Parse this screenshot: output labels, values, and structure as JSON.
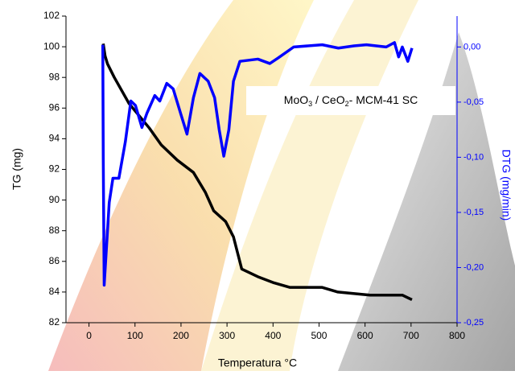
{
  "chart_data": {
    "type": "line",
    "xlabel": "Temperatura °C",
    "ylabel": "TG (mg)",
    "y2label": "DTG (mg/min)",
    "annotation": [
      "MoO",
      "3",
      " / CeO",
      "2",
      "- MCM-41 SC"
    ],
    "xlim": [
      -50,
      800
    ],
    "xticks": [
      0,
      100,
      200,
      300,
      400,
      500,
      600,
      700,
      800
    ],
    "ylim": [
      82,
      102
    ],
    "yticks": [
      82,
      84,
      86,
      88,
      90,
      92,
      94,
      96,
      98,
      100,
      102
    ],
    "y2lim": [
      -0.25,
      0.028
    ],
    "y2ticks": [
      {
        "value": 0,
        "label": "0,00"
      },
      {
        "value": -0.05,
        "label": "-0,05"
      },
      {
        "value": -0.1,
        "label": "-0,10"
      },
      {
        "value": -0.15,
        "label": "-0,15"
      },
      {
        "value": -0.2,
        "label": "-0,20"
      },
      {
        "value": -0.25,
        "label": "-0,25"
      }
    ],
    "y2color": "#0000ff",
    "series": [
      {
        "color": "#000000",
        "axis": "y",
        "x": [
          31,
          35,
          40,
          55,
          87,
          131,
          157,
          192,
          227,
          253,
          271,
          297,
          314,
          332,
          367,
          402,
          437,
          507,
          541,
          611,
          681,
          702
        ],
        "values": [
          100.2,
          99.4,
          98.9,
          98.0,
          96.3,
          94.7,
          93.6,
          92.6,
          91.8,
          90.5,
          89.3,
          88.6,
          87.6,
          85.5,
          85.0,
          84.6,
          84.3,
          84.3,
          84.0,
          83.8,
          83.8,
          83.5
        ]
      },
      {
        "color": "#0000ff",
        "axis": "y2",
        "x": [
          30,
          31,
          33,
          44,
          52,
          65,
          79,
          91,
          101,
          115,
          126,
          143,
          154,
          169,
          183,
          199,
          213,
          227,
          241,
          259,
          273,
          283,
          293,
          304,
          314,
          328,
          367,
          393,
          411,
          445,
          507,
          542,
          576,
          603,
          646,
          664,
          673,
          681,
          693,
          702
        ],
        "values": [
          0.002,
          -0.1,
          -0.216,
          -0.141,
          -0.119,
          -0.119,
          -0.086,
          -0.049,
          -0.053,
          -0.073,
          -0.06,
          -0.044,
          -0.049,
          -0.033,
          -0.038,
          -0.06,
          -0.079,
          -0.046,
          -0.024,
          -0.031,
          -0.046,
          -0.075,
          -0.099,
          -0.075,
          -0.031,
          -0.013,
          -0.011,
          -0.015,
          -0.01,
          0,
          0.002,
          -0.001,
          0.001,
          0.002,
          0,
          0.004,
          -0.009,
          0,
          -0.013,
          -0.001
        ]
      }
    ]
  }
}
